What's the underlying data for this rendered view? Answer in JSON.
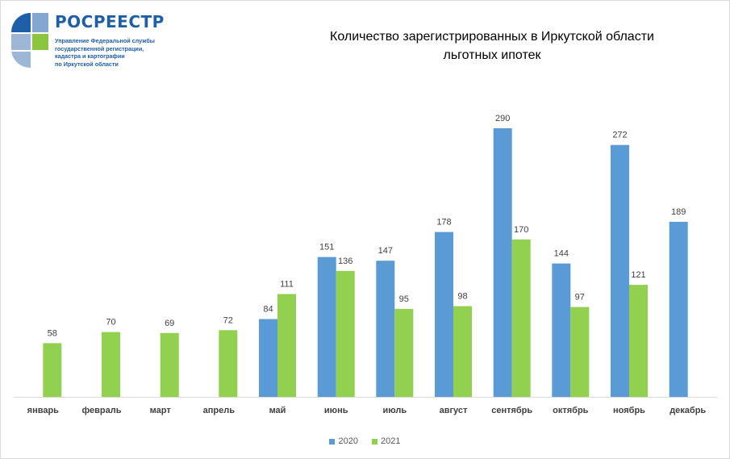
{
  "logo": {
    "brand": "РОСРЕЕСТР",
    "org_lines": [
      "Управление Федеральной службы",
      "государственной регистрации,",
      "кадастра и картографии",
      "по Иркутской области"
    ],
    "icon": "rosreestr-emblem-icon"
  },
  "colors": {
    "s2020": "#5b9bd5",
    "s2021": "#92d050",
    "axis": "#d9d9d9",
    "label": "#404040",
    "brand": "#1f5fa8"
  },
  "chart_data": {
    "type": "bar",
    "title_lines": [
      "Количество  зарегистрированных  в Иркутской области",
      "льготных ипотек"
    ],
    "categories": [
      "январь",
      "февраль",
      "март",
      "апрель",
      "май",
      "июнь",
      "июль",
      "август",
      "сентябрь",
      "октябрь",
      "ноябрь",
      "декабрь"
    ],
    "series": [
      {
        "name": "2020",
        "values": [
          null,
          null,
          null,
          null,
          84,
          151,
          147,
          178,
          290,
          144,
          272,
          189
        ],
        "color": "#5b9bd5"
      },
      {
        "name": "2021",
        "values": [
          58,
          70,
          69,
          72,
          111,
          136,
          95,
          98,
          170,
          97,
          121,
          null
        ],
        "color": "#92d050"
      }
    ],
    "ylim": [
      0,
      290
    ],
    "legend": "bottom-center",
    "grid": false
  }
}
